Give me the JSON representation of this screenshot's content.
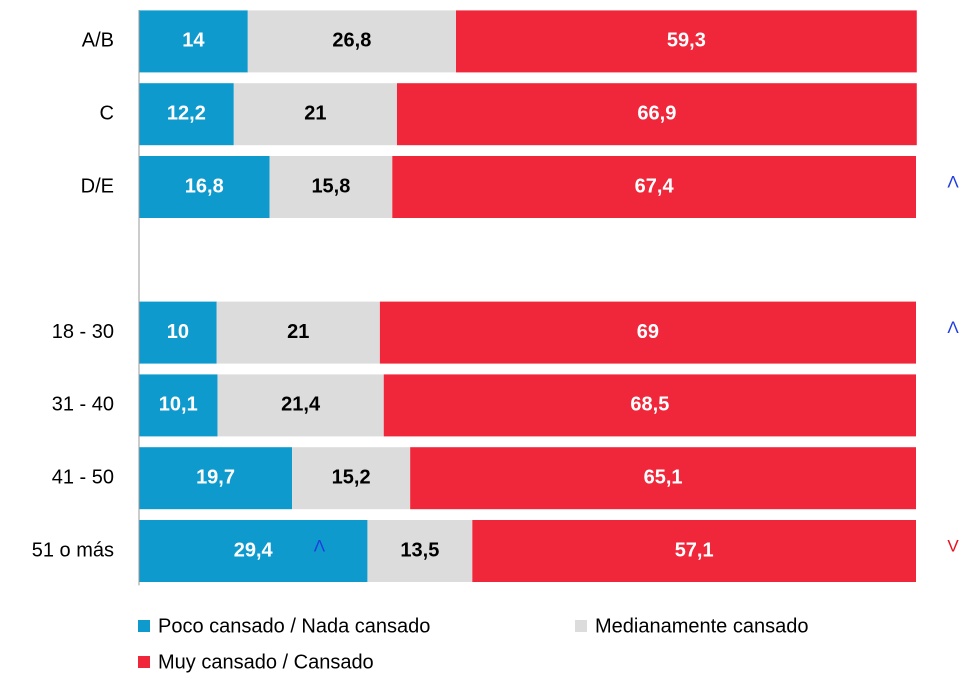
{
  "chart_data": {
    "type": "stacked-bar-horizontal",
    "categories": [
      "A/B",
      "C",
      "D/E",
      null,
      "18 - 30",
      "31 - 40",
      "41 - 50",
      "51 o más"
    ],
    "xlim": [
      0,
      100
    ],
    "series": [
      {
        "name": "Poco cansado / Nada cansado",
        "color": "#0f9acd",
        "label_color": "#ffffff",
        "values": [
          14,
          12.2,
          16.8,
          null,
          10,
          10.1,
          19.7,
          29.4
        ],
        "value_labels": [
          "14",
          "12,2",
          "16,8",
          null,
          "10",
          "10,1",
          "19,7",
          "29,4"
        ]
      },
      {
        "name": "Medianamente cansado",
        "color": "#dcdcdc",
        "label_color": "#000000",
        "values": [
          26.8,
          21,
          15.8,
          null,
          21,
          21.4,
          15.2,
          13.5
        ],
        "value_labels": [
          "26,8",
          "21",
          "15,8",
          null,
          "21",
          "21,4",
          "15,2",
          "13,5"
        ]
      },
      {
        "name": "Muy cansado / Cansado",
        "color": "#f0263a",
        "label_color": "#ffffff",
        "values": [
          59.3,
          66.9,
          67.4,
          null,
          69,
          68.5,
          65.1,
          57.1
        ],
        "value_labels": [
          "59,3",
          "66,9",
          "67,4",
          null,
          "69",
          "68,5",
          "65,1",
          "57,1"
        ]
      }
    ],
    "annotations": [
      {
        "text": "Λ",
        "category": "D/E",
        "color": "#1f3de0"
      },
      {
        "text": "Λ",
        "category": "18 - 30",
        "color": "#1f3de0"
      },
      {
        "text": "Λ",
        "category": "51 o más",
        "series": "Poco cansado / Nada cansado",
        "color": "#1f3de0"
      },
      {
        "text": "V",
        "category": "51 o más",
        "color": "#e8101e"
      }
    ],
    "legend": "bottom"
  }
}
